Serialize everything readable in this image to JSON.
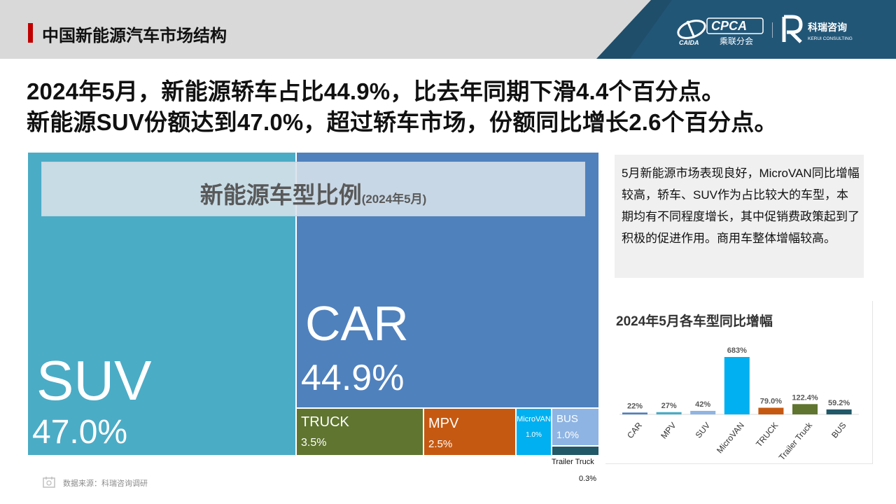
{
  "header": {
    "title": "中国新能源汽车市场结构",
    "cpca_logo_text": "CPCA",
    "cpca_logo_sub": "乘联分会",
    "cpca_logo_left": "CAIDA",
    "kerui_logo_name": "科瑞咨询",
    "kerui_logo_sub": "KERUI CONSULTING",
    "colors": {
      "band_dark": "#1f4e6b",
      "band_mid": "#2e6f92",
      "accent": "#c00000"
    }
  },
  "headlines": [
    "2024年5月，新能源轿车占比44.9%，比去年同期下滑4.4个百分点。",
    "新能源SUV份额达到47.0%，超过轿车市场，份额同比增长2.6个百分点。"
  ],
  "treemap": {
    "title": "新能源车型比例",
    "title_date": "(2024年5月)"
  },
  "commentary": "5月新能源市场表现良好，MicroVAN同比增幅较高，轿车、SUV作为占比较大的车型，本期均有不同程度增长，其中促销费政策起到了积极的促进作用。商用车整体增幅较高。",
  "growth_chart": {
    "title": "2024年5月各车型同比增幅"
  },
  "source": "数据来源：科瑞咨询调研",
  "chart_data": [
    {
      "type": "treemap",
      "title": "新能源车型比例(2024年5月)",
      "items": [
        {
          "name": "SUV",
          "value": 47.0,
          "label": "47.0%",
          "color": "#4bacc6"
        },
        {
          "name": "CAR",
          "value": 44.9,
          "label": "44.9%",
          "color": "#4f81bd"
        },
        {
          "name": "TRUCK",
          "value": 3.5,
          "label": "3.5%",
          "color": "#5f7530"
        },
        {
          "name": "MPV",
          "value": 2.5,
          "label": "2.5%",
          "color": "#c65911"
        },
        {
          "name": "MicroVAN",
          "value": 1.0,
          "label": "1.0%",
          "color": "#00b0f0"
        },
        {
          "name": "BUS",
          "value": 1.0,
          "label": "1.0%",
          "color": "#8eb4e3"
        },
        {
          "name": "Trailer Truck",
          "value": 0.3,
          "label": "0.3%",
          "color": "#215968"
        }
      ]
    },
    {
      "type": "bar",
      "title": "2024年5月各车型同比增幅",
      "categories": [
        "CAR",
        "MPV",
        "SUV",
        "MicroVAN",
        "TRUCK",
        "Trailer Truck",
        "BUS"
      ],
      "values": [
        22,
        27,
        42,
        683,
        79.0,
        122.4,
        59.2
      ],
      "labels": [
        "22%",
        "27%",
        "42%",
        "683%",
        "79.0%",
        "122.4%",
        "59.2%"
      ],
      "colors": [
        "#4f81bd",
        "#4bacc6",
        "#8eb4e3",
        "#00b0f0",
        "#c65911",
        "#5f7530",
        "#215968"
      ],
      "ylim": [
        0,
        683
      ],
      "grid": false,
      "legend": "none"
    }
  ]
}
